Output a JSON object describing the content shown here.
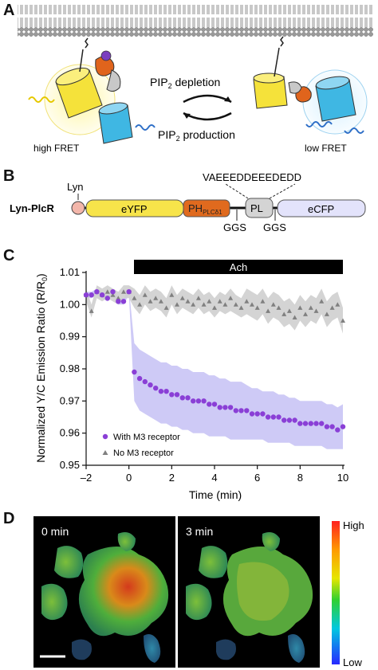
{
  "panels": {
    "a": {
      "letter": "A",
      "depletion": "PIP",
      "depletion_sub": "2",
      "depletion_rest": " depletion",
      "production": "PIP",
      "production_sub": "2",
      "production_rest": " production",
      "high_fret": "high FRET",
      "low_fret": "low FRET"
    },
    "b": {
      "letter": "B",
      "construct": "Lyn-PlcR",
      "lyn": "Lyn",
      "eyfp": "eYFP",
      "ph": "PH",
      "ph_sub": "PLCδ1",
      "pl": "PL",
      "ecfp": "eCFP",
      "linker_seq": "VAEEEDDEEEDEDD",
      "ggs_1": "GGS",
      "ggs_2": "GGS"
    },
    "c": {
      "letter": "C",
      "stimulus": "Ach"
    },
    "d": {
      "letter": "D",
      "time_0": "0 min",
      "time_3": "3 min",
      "scale_high": "High",
      "scale_low": "Low"
    }
  },
  "colors": {
    "with_m3": "#8a3fd6",
    "with_m3_band": "#c9c4f5",
    "no_m3": "#808080",
    "no_m3_band": "#cfcfcf",
    "yfp": "#f5e23a",
    "cfp": "#3fb7e3",
    "ph": "#e0641c"
  },
  "chart_data": {
    "type": "scatter",
    "xlabel": "Time (min)",
    "ylabel": "Normalized Y/C Emission Ratio (R/R",
    "ylabel_sub": "0",
    "ylabel_end": ")",
    "xlim": [
      -2,
      10
    ],
    "ylim": [
      0.95,
      1.01
    ],
    "xticks": [
      "–2",
      "0",
      "2",
      "4",
      "6",
      "8",
      "10"
    ],
    "xtick_values": [
      -2,
      0,
      2,
      4,
      6,
      8,
      10
    ],
    "yticks": [
      "0.95",
      "0.96",
      "0.97",
      "0.98",
      "0.99",
      "1.00",
      "1.01"
    ],
    "ytick_values": [
      0.95,
      0.96,
      0.97,
      0.98,
      0.99,
      1.0,
      1.01
    ],
    "legend_position": "bottom-left",
    "series": [
      {
        "name": "With M3 receptor",
        "marker": "circle",
        "x": [
          -2,
          -1.75,
          -1.5,
          -1.25,
          -1,
          -0.75,
          -0.5,
          -0.25,
          0,
          0.25,
          0.5,
          0.75,
          1,
          1.25,
          1.5,
          1.75,
          2,
          2.25,
          2.5,
          2.75,
          3,
          3.25,
          3.5,
          3.75,
          4,
          4.25,
          4.5,
          4.75,
          5,
          5.25,
          5.5,
          5.75,
          6,
          6.25,
          6.5,
          6.75,
          7,
          7.25,
          7.5,
          7.75,
          8,
          8.25,
          8.5,
          8.75,
          9,
          9.25,
          9.5,
          9.75,
          10
        ],
        "y": [
          1.003,
          1.003,
          1.004,
          1.003,
          1.002,
          1.004,
          1.001,
          1.001,
          1.004,
          0.979,
          0.977,
          0.976,
          0.975,
          0.974,
          0.973,
          0.973,
          0.972,
          0.972,
          0.971,
          0.971,
          0.97,
          0.97,
          0.97,
          0.969,
          0.969,
          0.968,
          0.968,
          0.968,
          0.967,
          0.967,
          0.967,
          0.966,
          0.966,
          0.966,
          0.965,
          0.965,
          0.965,
          0.964,
          0.964,
          0.964,
          0.963,
          0.963,
          0.963,
          0.963,
          0.963,
          0.962,
          0.962,
          0.961,
          0.962
        ],
        "band_low": [
          1.002,
          1.002,
          1.003,
          1.002,
          1.001,
          1.003,
          1.0,
          1.0,
          1.003,
          0.97,
          0.967,
          0.966,
          0.965,
          0.964,
          0.963,
          0.963,
          0.962,
          0.962,
          0.961,
          0.961,
          0.96,
          0.96,
          0.96,
          0.959,
          0.959,
          0.959,
          0.959,
          0.958,
          0.958,
          0.958,
          0.958,
          0.958,
          0.958,
          0.958,
          0.957,
          0.957,
          0.957,
          0.957,
          0.957,
          0.956,
          0.956,
          0.956,
          0.956,
          0.956,
          0.956,
          0.955,
          0.955,
          0.955,
          0.955
        ],
        "band_high": [
          1.004,
          1.004,
          1.005,
          1.004,
          1.003,
          1.005,
          1.002,
          1.002,
          1.005,
          0.988,
          0.986,
          0.985,
          0.984,
          0.983,
          0.982,
          0.982,
          0.981,
          0.981,
          0.98,
          0.98,
          0.979,
          0.979,
          0.979,
          0.978,
          0.978,
          0.977,
          0.977,
          0.976,
          0.976,
          0.976,
          0.975,
          0.974,
          0.974,
          0.973,
          0.973,
          0.973,
          0.972,
          0.972,
          0.971,
          0.971,
          0.97,
          0.97,
          0.97,
          0.97,
          0.97,
          0.969,
          0.969,
          0.968,
          0.969
        ]
      },
      {
        "name": "No M3 receptor",
        "marker": "triangle",
        "x": [
          -2,
          -1.75,
          -1.5,
          -1.25,
          -1,
          -0.75,
          -0.5,
          -0.25,
          0,
          0.25,
          0.5,
          0.75,
          1,
          1.25,
          1.5,
          1.75,
          2,
          2.25,
          2.5,
          2.75,
          3,
          3.25,
          3.5,
          3.75,
          4,
          4.25,
          4.5,
          4.75,
          5,
          5.25,
          5.5,
          5.75,
          6,
          6.25,
          6.5,
          6.75,
          7,
          7.25,
          7.5,
          7.75,
          8,
          8.25,
          8.5,
          8.75,
          9,
          9.25,
          9.5,
          9.75,
          10
        ],
        "y": [
          1.003,
          0.998,
          1.004,
          1.003,
          1.004,
          1.003,
          1.002,
          1.004,
          1.004,
          1.002,
          1.0,
          1.003,
          1.001,
          1.002,
          1.001,
          0.999,
          1.003,
          1.0,
          1.002,
          1.001,
          1.0,
          1.002,
          1.0,
          1.001,
          0.999,
          1.001,
          1.0,
          1.002,
          1.0,
          0.999,
          1.001,
          1.0,
          0.999,
          1.001,
          0.998,
          1.0,
          0.999,
          0.997,
          0.998,
          0.996,
          0.999,
          0.997,
          0.999,
          0.998,
          1.001,
          0.997,
          0.999,
          1.0,
          0.995
        ],
        "band_low": [
          1.001,
          0.996,
          1.002,
          1.001,
          1.002,
          1.001,
          1.0,
          1.002,
          1.002,
          0.999,
          0.997,
          1.0,
          0.998,
          0.999,
          0.998,
          0.996,
          1.0,
          0.997,
          0.999,
          0.998,
          0.997,
          0.999,
          0.997,
          0.998,
          0.996,
          0.998,
          0.997,
          0.998,
          0.997,
          0.996,
          0.997,
          0.996,
          0.995,
          0.997,
          0.994,
          0.996,
          0.995,
          0.993,
          0.994,
          0.992,
          0.995,
          0.993,
          0.995,
          0.994,
          0.997,
          0.993,
          0.995,
          0.996,
          0.991
        ],
        "band_high": [
          1.005,
          1.0,
          1.006,
          1.005,
          1.006,
          1.005,
          1.004,
          1.006,
          1.006,
          1.005,
          1.003,
          1.006,
          1.004,
          1.005,
          1.004,
          1.002,
          1.006,
          1.003,
          1.005,
          1.004,
          1.003,
          1.005,
          1.003,
          1.004,
          1.002,
          1.004,
          1.003,
          1.005,
          1.003,
          1.002,
          1.005,
          1.004,
          1.003,
          1.005,
          1.002,
          1.004,
          1.003,
          1.001,
          1.002,
          1.0,
          1.003,
          1.001,
          1.003,
          1.002,
          1.005,
          1.001,
          1.003,
          1.004,
          0.999
        ]
      }
    ]
  }
}
